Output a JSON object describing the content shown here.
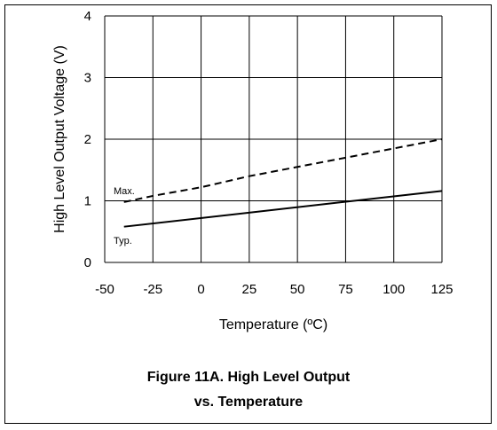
{
  "chart_data": {
    "type": "line",
    "xlabel": "Temperature (ºC)",
    "ylabel": "High Level Output Voltage (V)",
    "x_ticks": [
      -50,
      -25,
      0,
      25,
      50,
      75,
      100,
      125
    ],
    "y_ticks": [
      0,
      1,
      2,
      3,
      4
    ],
    "xlim": [
      -50,
      125
    ],
    "ylim": [
      0,
      4
    ],
    "grid": true,
    "series": [
      {
        "name": "Max.",
        "style": "dashed",
        "x": [
          -40,
          -25,
          0,
          25,
          50,
          75,
          100,
          125
        ],
        "y": [
          0.98,
          1.08,
          1.22,
          1.4,
          1.55,
          1.7,
          1.85,
          2.0
        ]
      },
      {
        "name": "Typ.",
        "style": "solid",
        "x": [
          -40,
          125
        ],
        "y": [
          0.58,
          1.16
        ]
      }
    ]
  },
  "caption": {
    "line1": "Figure 11A. High Level Output",
    "line2": "vs. Temperature"
  }
}
